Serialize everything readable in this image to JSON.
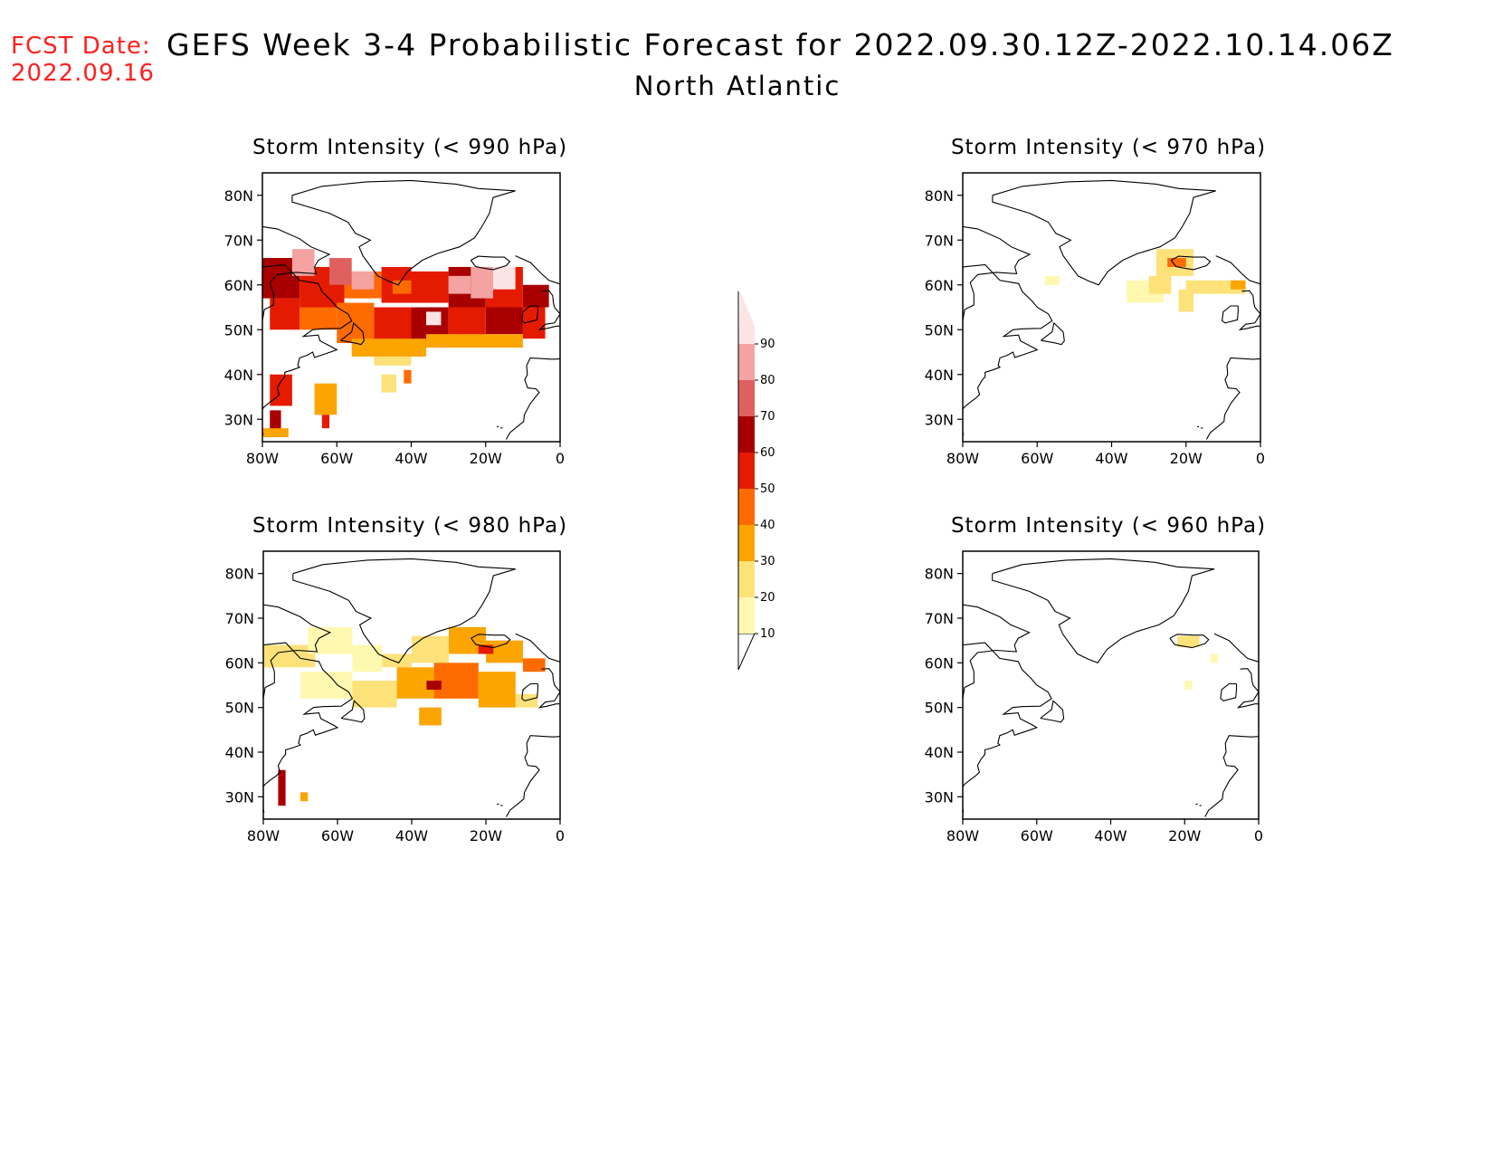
{
  "header": {
    "fcst_label": "FCST Date:",
    "fcst_date": "2022.09.16",
    "title": "GEFS Week 3-4 Probabilistic Forecast for 2022.09.30.12Z-2022.10.14.06Z",
    "subtitle": "North Atlantic"
  },
  "axes": {
    "lat_ticks": [
      "80N",
      "70N",
      "60N",
      "50N",
      "40N",
      "30N"
    ],
    "lon_ticks": [
      "80W",
      "60W",
      "40W",
      "20W",
      "0"
    ]
  },
  "panels": [
    {
      "id": "p1",
      "title": "Storm Intensity (< 990 hPa)",
      "threshold_hpa": 990
    },
    {
      "id": "p2",
      "title": "Storm Intensity (< 970 hPa)",
      "threshold_hpa": 970
    },
    {
      "id": "p3",
      "title": "Storm Intensity (< 980 hPa)",
      "threshold_hpa": 980
    },
    {
      "id": "p4",
      "title": "Storm Intensity (< 960 hPa)",
      "threshold_hpa": 960
    }
  ],
  "colorbar": {
    "levels": [
      "10",
      "20",
      "30",
      "40",
      "50",
      "60",
      "70",
      "80",
      "90"
    ],
    "colors": [
      "#fff8b0",
      "#fde27a",
      "#fca400",
      "#fd6a00",
      "#e41b00",
      "#a80000",
      "#e06060",
      "#f4a2a2",
      "#fde4e4"
    ]
  },
  "map": {
    "lon_range": [
      -80,
      0
    ],
    "lat_range": [
      25,
      85
    ]
  }
}
